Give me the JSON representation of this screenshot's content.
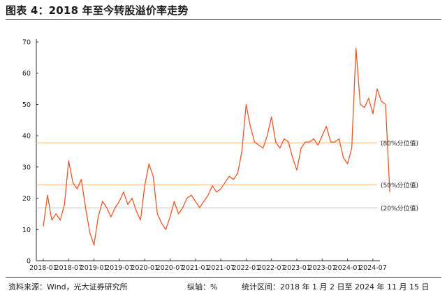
{
  "header": {
    "title": "图表 4：2018 年至今转股溢价率走势"
  },
  "footer": {
    "source": "资料来源：Wind，光大证券研究所",
    "unit": "纵轴：%",
    "period": "统计区间：2018 年 1 月 2 日至 2024 年 11 月 15 日"
  },
  "colors": {
    "series_line": "#e8572a",
    "reference_line": "#f5b28a",
    "axis": "#333333"
  },
  "chart_data": {
    "type": "line",
    "title": "",
    "xlabel": "",
    "ylabel": "",
    "ylim": [
      0,
      70
    ],
    "yticks": [
      "0",
      "10",
      "20",
      "30",
      "40",
      "50",
      "60",
      "70"
    ],
    "xticks": [
      "2018-01",
      "2018-07",
      "2019-01",
      "2019-07",
      "2020-01",
      "2020-07",
      "2021-01",
      "2021-07",
      "2022-01",
      "2022-07",
      "2023-01",
      "2023-07",
      "2024-01",
      "2024-07"
    ],
    "grid": false,
    "reference_lines": [
      {
        "label": "(80%分位值)",
        "value": 37.7
      },
      {
        "label": "(50%分位值)",
        "value": 24.3
      },
      {
        "label": "(20%分位值)",
        "value": 16.9
      }
    ],
    "series": [
      {
        "name": "",
        "x": [
          "2018-01",
          "2018-02",
          "2018-03",
          "2018-04",
          "2018-05",
          "2018-06",
          "2018-07",
          "2018-08",
          "2018-09",
          "2018-10",
          "2018-11",
          "2018-12",
          "2019-01",
          "2019-02",
          "2019-03",
          "2019-04",
          "2019-05",
          "2019-06",
          "2019-07",
          "2019-08",
          "2019-09",
          "2019-10",
          "2019-11",
          "2019-12",
          "2020-01",
          "2020-02",
          "2020-03",
          "2020-04",
          "2020-05",
          "2020-06",
          "2020-07",
          "2020-08",
          "2020-09",
          "2020-10",
          "2020-11",
          "2020-12",
          "2021-01",
          "2021-02",
          "2021-03",
          "2021-04",
          "2021-05",
          "2021-06",
          "2021-07",
          "2021-08",
          "2021-09",
          "2021-10",
          "2021-11",
          "2021-12",
          "2022-01",
          "2022-02",
          "2022-03",
          "2022-04",
          "2022-05",
          "2022-06",
          "2022-07",
          "2022-08",
          "2022-09",
          "2022-10",
          "2022-11",
          "2022-12",
          "2023-01",
          "2023-02",
          "2023-03",
          "2023-04",
          "2023-05",
          "2023-06",
          "2023-07",
          "2023-08",
          "2023-09",
          "2023-10",
          "2023-11",
          "2023-12",
          "2024-01",
          "2024-02",
          "2024-03",
          "2024-04",
          "2024-05",
          "2024-06",
          "2024-07",
          "2024-08",
          "2024-09",
          "2024-10",
          "2024-11"
        ],
        "values": [
          11,
          21,
          13,
          15,
          13,
          18,
          32,
          25,
          23,
          26,
          17,
          9,
          5,
          14,
          19,
          17,
          14,
          17,
          19,
          22,
          18,
          20,
          16,
          13,
          24,
          31,
          27,
          15,
          12,
          10,
          14,
          19,
          15,
          17,
          20,
          21,
          19,
          17,
          19,
          21,
          24,
          22,
          23,
          25,
          27,
          26,
          28,
          35,
          50,
          43,
          38,
          37,
          36,
          40,
          46,
          38,
          36,
          39,
          38,
          33,
          29,
          36,
          38,
          38,
          39,
          37,
          40,
          43,
          38,
          38,
          39,
          33,
          31,
          36,
          68,
          50,
          49,
          52,
          47,
          55,
          51,
          50,
          22
        ]
      }
    ]
  }
}
